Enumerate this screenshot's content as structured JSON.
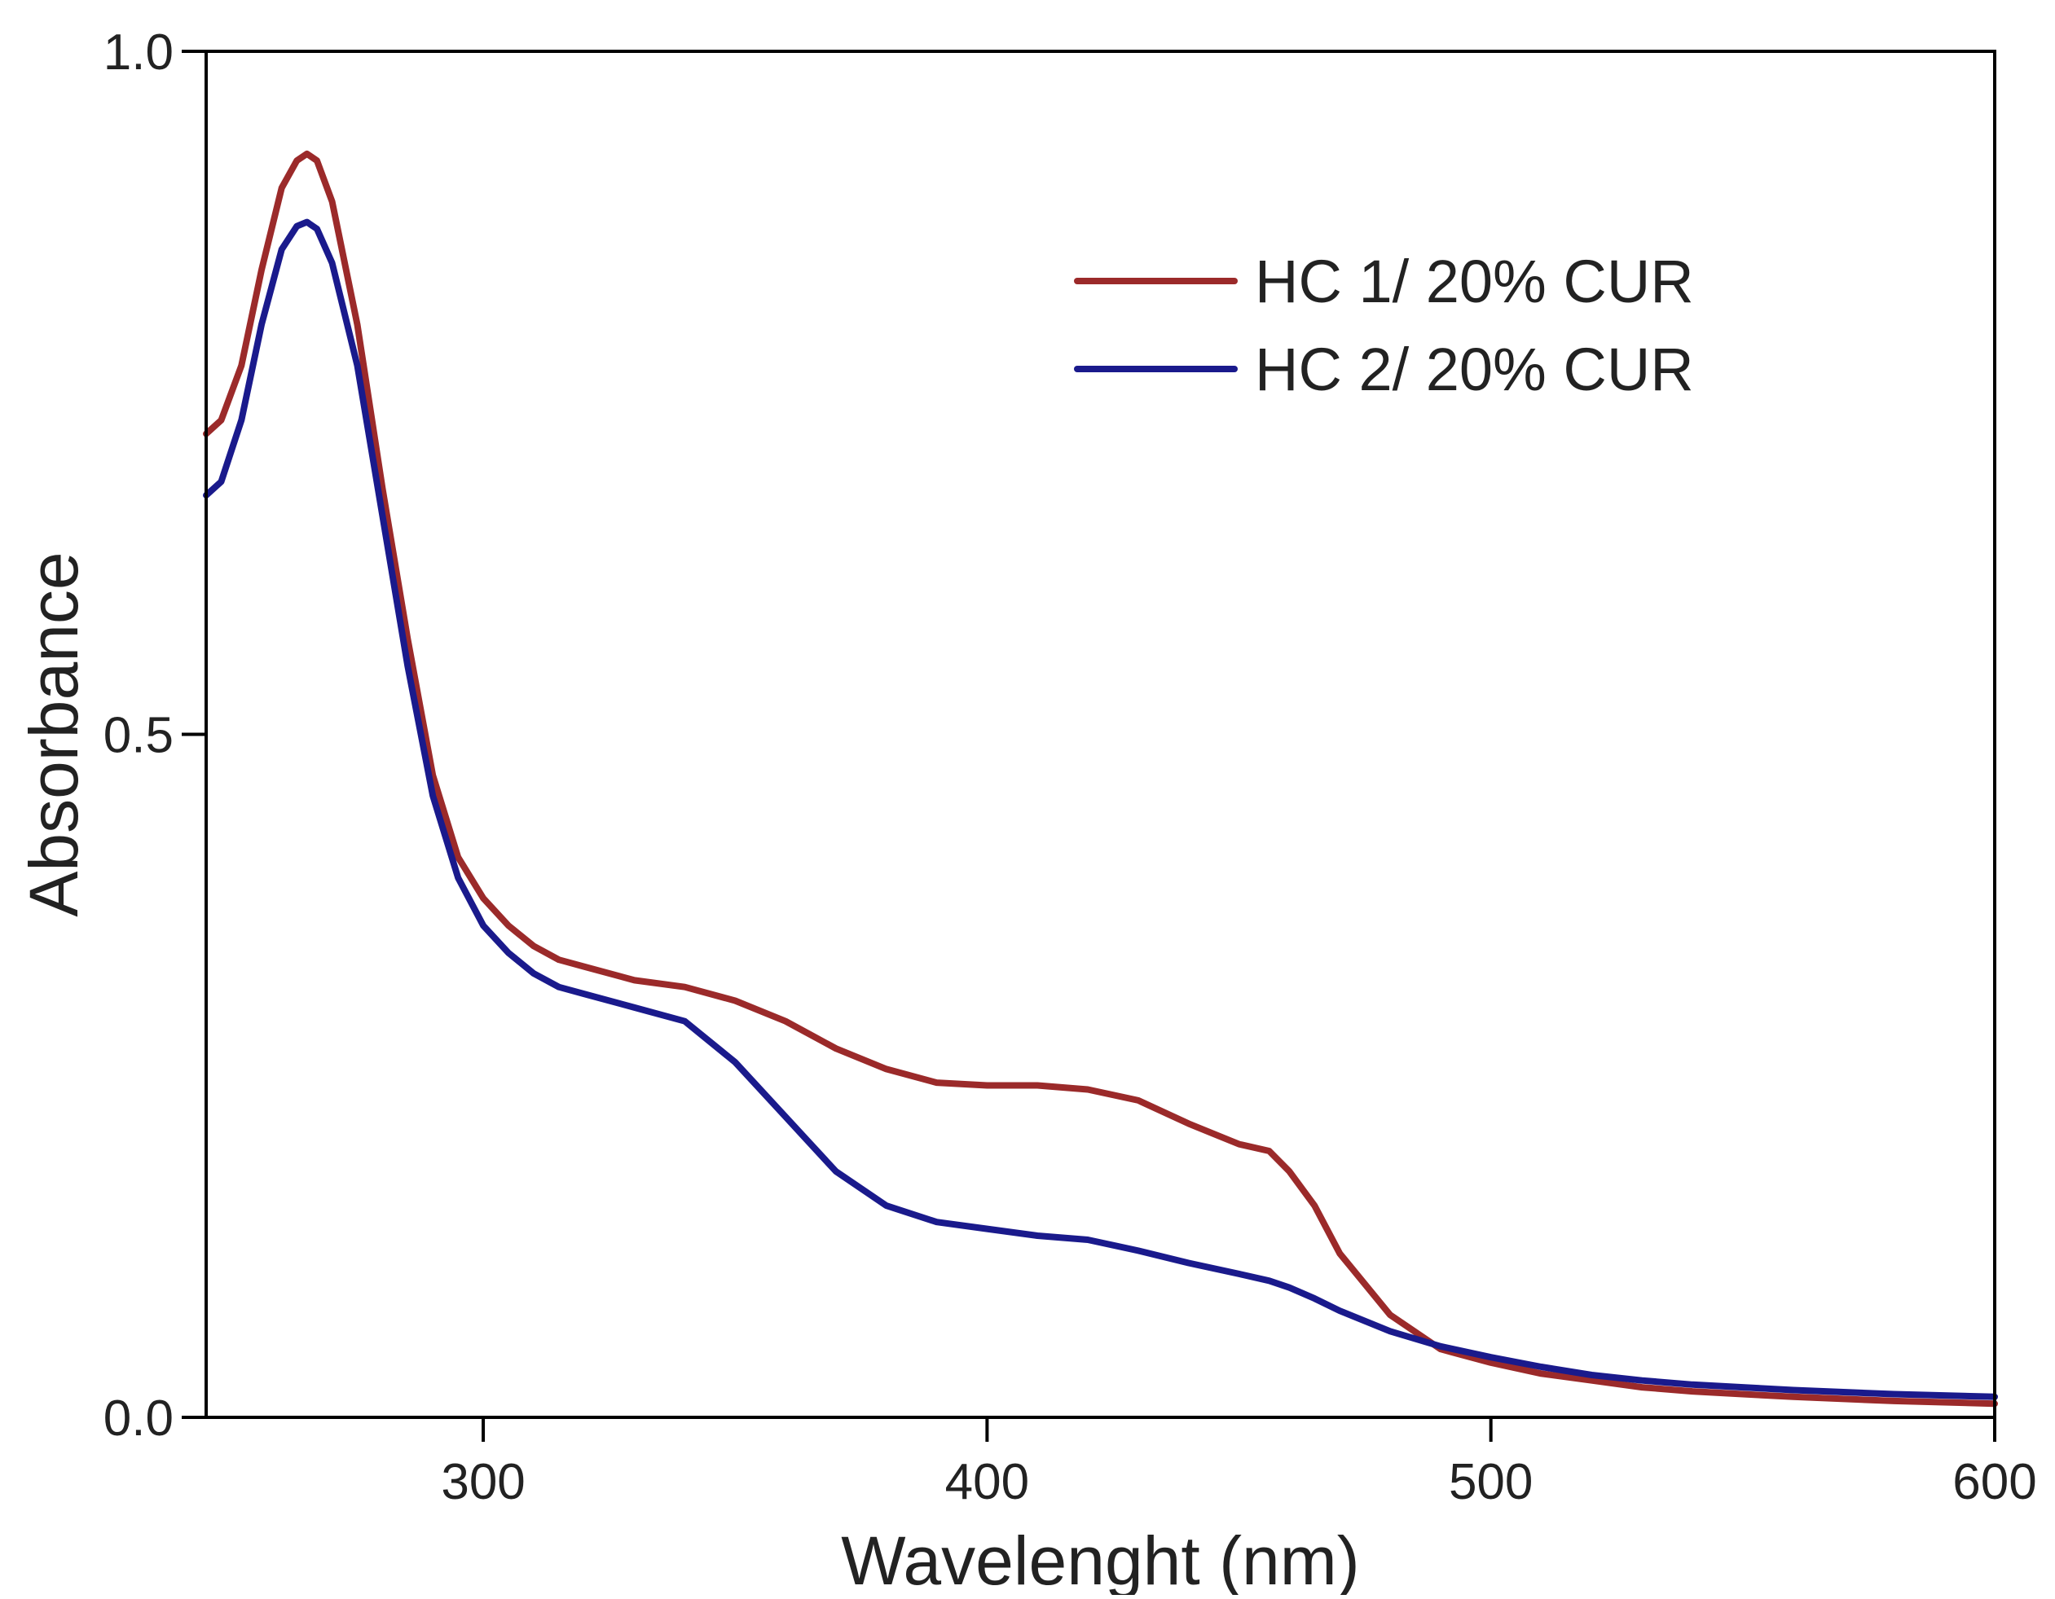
{
  "colors": {
    "background": "#ffffff",
    "axis": "#000000",
    "text": "#222222"
  },
  "chart_data": {
    "type": "line",
    "title": "",
    "xlabel": "Wavelenght (nm)",
    "ylabel": "Absorbance",
    "xlim": [
      245,
      600
    ],
    "ylim": [
      0.0,
      1.0
    ],
    "x_ticks": [
      300,
      400,
      500,
      600
    ],
    "x_tick_labels": [
      "300",
      "400",
      "500",
      "600"
    ],
    "y_ticks": [
      0.0,
      0.5,
      1.0
    ],
    "y_tick_labels": [
      "0.0",
      "0.5",
      "1.0"
    ],
    "grid": false,
    "legend_position": "top-right",
    "series": [
      {
        "name": "HC 1/ 20% CUR",
        "color": "#9b2a2a",
        "x": [
          245,
          248,
          252,
          256,
          260,
          263,
          265,
          267,
          270,
          275,
          280,
          285,
          290,
          295,
          300,
          305,
          310,
          315,
          320,
          330,
          340,
          350,
          360,
          370,
          380,
          390,
          400,
          410,
          420,
          430,
          440,
          450,
          456,
          460,
          465,
          470,
          480,
          490,
          500,
          510,
          520,
          530,
          540,
          550,
          560,
          580,
          600
        ],
        "y": [
          0.72,
          0.73,
          0.77,
          0.84,
          0.9,
          0.92,
          0.925,
          0.92,
          0.89,
          0.8,
          0.68,
          0.57,
          0.47,
          0.41,
          0.38,
          0.36,
          0.345,
          0.335,
          0.33,
          0.32,
          0.315,
          0.305,
          0.29,
          0.27,
          0.255,
          0.245,
          0.243,
          0.243,
          0.24,
          0.232,
          0.215,
          0.2,
          0.195,
          0.18,
          0.155,
          0.12,
          0.075,
          0.05,
          0.04,
          0.032,
          0.027,
          0.022,
          0.019,
          0.017,
          0.015,
          0.012,
          0.01
        ]
      },
      {
        "name": "HC 2/ 20% CUR",
        "color": "#1a1a8c",
        "x": [
          245,
          248,
          252,
          256,
          260,
          263,
          265,
          267,
          270,
          275,
          280,
          285,
          290,
          295,
          300,
          305,
          310,
          315,
          320,
          330,
          340,
          350,
          360,
          370,
          380,
          390,
          400,
          410,
          420,
          430,
          440,
          450,
          456,
          460,
          465,
          470,
          480,
          490,
          500,
          510,
          520,
          530,
          540,
          550,
          560,
          580,
          600
        ],
        "y": [
          0.675,
          0.685,
          0.73,
          0.8,
          0.855,
          0.872,
          0.875,
          0.87,
          0.845,
          0.77,
          0.66,
          0.55,
          0.455,
          0.395,
          0.36,
          0.34,
          0.325,
          0.315,
          0.31,
          0.3,
          0.29,
          0.26,
          0.22,
          0.18,
          0.155,
          0.143,
          0.138,
          0.133,
          0.13,
          0.122,
          0.113,
          0.105,
          0.1,
          0.095,
          0.087,
          0.078,
          0.063,
          0.052,
          0.044,
          0.037,
          0.031,
          0.027,
          0.024,
          0.022,
          0.02,
          0.017,
          0.015
        ]
      }
    ]
  }
}
